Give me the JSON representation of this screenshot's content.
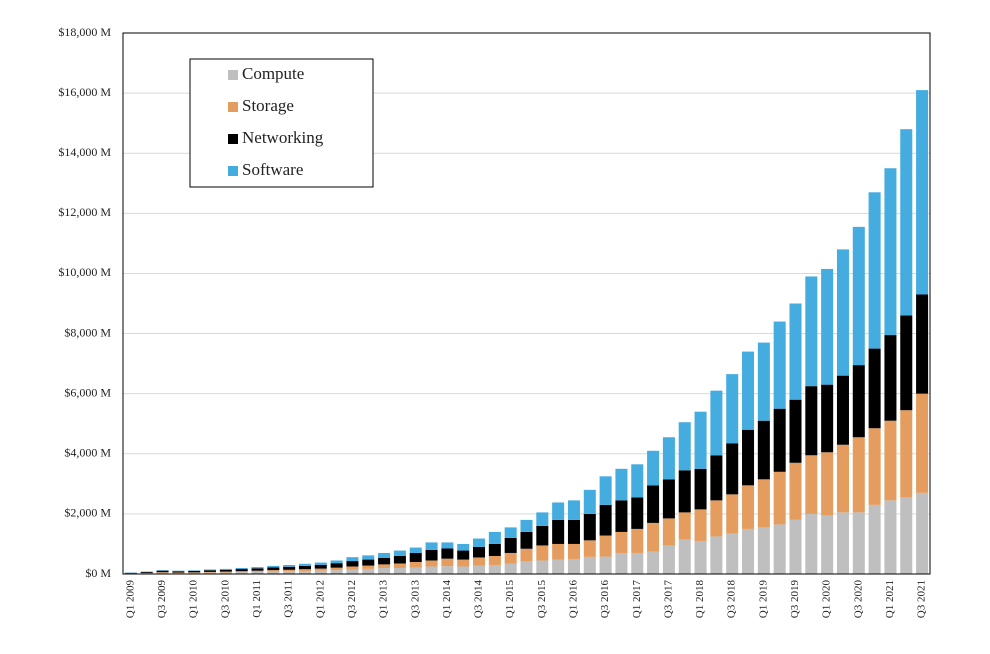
{
  "chart_data": {
    "type": "bar",
    "stacked": true,
    "categories": [
      "Q1 2009",
      null,
      "Q3 2009",
      null,
      "Q1 2010",
      null,
      "Q3 2010",
      null,
      "Q1 2011",
      null,
      "Q3 2011",
      null,
      "Q1 2012",
      null,
      "Q3 2012",
      null,
      "Q1 2013",
      null,
      "Q3 2013",
      null,
      "Q1 2014",
      null,
      "Q3 2014",
      null,
      "Q1 2015",
      null,
      "Q3 2015",
      null,
      "Q1 2016",
      null,
      "Q3 2016",
      null,
      "Q1 2017",
      null,
      "Q3 2017",
      null,
      "Q1 2018",
      null,
      "Q3 2018",
      null,
      "Q1 2019",
      null,
      "Q3 2019",
      null,
      "Q1 2020",
      null,
      "Q3 2020",
      null,
      "Q1 2021",
      null,
      "Q3 2021"
    ],
    "series": [
      {
        "name": "Compute",
        "color": "#bfbfbf",
        "values": [
          15,
          20,
          35,
          30,
          35,
          45,
          50,
          60,
          70,
          80,
          90,
          100,
          110,
          130,
          150,
          170,
          200,
          200,
          210,
          250,
          260,
          250,
          280,
          300,
          350,
          420,
          450,
          480,
          500,
          570,
          580,
          700,
          700,
          750,
          950,
          1150,
          1100,
          1250,
          1350,
          1500,
          1550,
          1650,
          1800,
          2000,
          1950,
          2050,
          2050,
          2300,
          2450,
          2550,
          2700
        ]
      },
      {
        "name": "Storage",
        "color": "#e59d5f",
        "values": [
          10,
          15,
          25,
          20,
          20,
          25,
          30,
          35,
          40,
          50,
          50,
          60,
          70,
          80,
          100,
          110,
          120,
          150,
          190,
          200,
          250,
          230,
          270,
          300,
          350,
          420,
          500,
          520,
          500,
          550,
          700,
          700,
          800,
          950,
          900,
          900,
          1050,
          1200,
          1300,
          1450,
          1600,
          1750,
          1900,
          1950,
          2100,
          2250,
          2500,
          2550,
          2650,
          2900,
          3300
        ]
      },
      {
        "name": "Networking",
        "color": "#000000",
        "values": [
          15,
          30,
          50,
          40,
          45,
          55,
          60,
          70,
          80,
          90,
          100,
          110,
          120,
          150,
          180,
          200,
          220,
          250,
          300,
          350,
          340,
          300,
          350,
          400,
          500,
          560,
          650,
          800,
          800,
          880,
          1020,
          1050,
          1050,
          1250,
          1300,
          1400,
          1350,
          1500,
          1700,
          1850,
          1950,
          2100,
          2100,
          2300,
          2250,
          2300,
          2400,
          2650,
          2850,
          3150,
          3300
        ]
      },
      {
        "name": "Software",
        "color": "#45acdf",
        "values": [
          10,
          15,
          20,
          20,
          20,
          25,
          30,
          35,
          40,
          50,
          60,
          70,
          80,
          90,
          130,
          140,
          160,
          180,
          180,
          250,
          200,
          220,
          280,
          400,
          350,
          400,
          450,
          580,
          650,
          800,
          950,
          1050,
          1100,
          1150,
          1400,
          1600,
          1900,
          2150,
          2300,
          2600,
          2600,
          2900,
          3200,
          3650,
          3850,
          4200,
          4600,
          5200,
          5550,
          6200,
          6800
        ]
      }
    ],
    "ylim": [
      0,
      18000
    ],
    "yticks": [
      {
        "value": 0,
        "label": "$0 M"
      },
      {
        "value": 2000,
        "label": "$2,000 M"
      },
      {
        "value": 4000,
        "label": "$4,000 M"
      },
      {
        "value": 6000,
        "label": "$6,000 M"
      },
      {
        "value": 8000,
        "label": "$8,000 M"
      },
      {
        "value": 10000,
        "label": "$10,000 M"
      },
      {
        "value": 12000,
        "label": "$12,000 M"
      },
      {
        "value": 14000,
        "label": "$14,000 M"
      },
      {
        "value": 16000,
        "label": "$16,000 M"
      },
      {
        "value": 18000,
        "label": "$18,000 M"
      }
    ],
    "grid": true,
    "legend": "upper left"
  }
}
